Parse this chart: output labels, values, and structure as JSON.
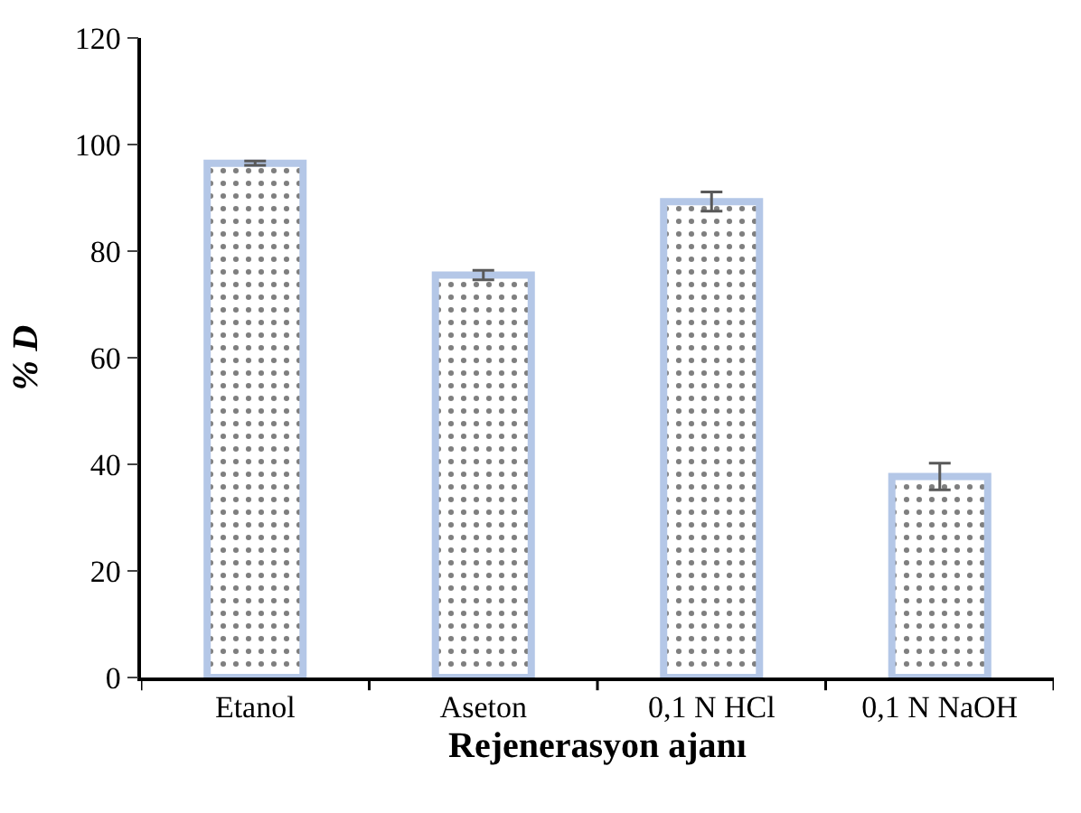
{
  "chart_data": {
    "type": "bar",
    "xlabel": "Rejenerasyon ajanı",
    "ylabel": "% D",
    "categories": [
      "Etanol",
      "Aseton",
      "0,1 N HCl",
      "0,1 N NaOH"
    ],
    "values": [
      96.5,
      75.5,
      89.3,
      37.7
    ],
    "errors": [
      0.4,
      0.9,
      1.8,
      2.5
    ],
    "color": "#b4c7e7",
    "ylim": [
      0,
      120
    ],
    "yticks": [
      0,
      20,
      40,
      60,
      80,
      100,
      120
    ],
    "grid": false,
    "legend": false
  }
}
